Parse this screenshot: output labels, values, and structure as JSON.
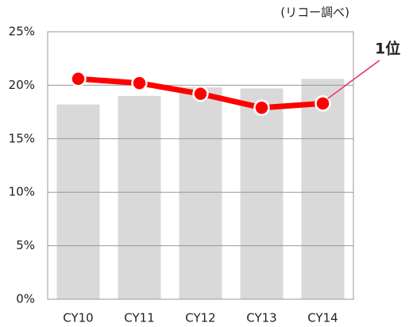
{
  "chart_data": {
    "type": "bar_line",
    "source": "(リコー調べ)",
    "annotation": "1位",
    "annotation_color": "#e6287a",
    "categories": [
      "CY10",
      "CY11",
      "CY12",
      "CY13",
      "CY14"
    ],
    "series": [
      {
        "type": "bar",
        "color": "#d9d9d9",
        "values": [
          18.2,
          19.0,
          19.8,
          19.7,
          20.6
        ]
      },
      {
        "type": "line",
        "color": "#ff0000",
        "values": [
          20.6,
          20.2,
          19.2,
          17.9,
          18.3
        ]
      }
    ],
    "ylim": [
      0,
      25
    ],
    "yticks": [
      {
        "value": 0,
        "label": "0%"
      },
      {
        "value": 5,
        "label": "5%"
      },
      {
        "value": 10,
        "label": "10%"
      },
      {
        "value": 15,
        "label": "15%"
      },
      {
        "value": 20,
        "label": "20%"
      },
      {
        "value": 25,
        "label": "25%"
      }
    ],
    "grid": true
  }
}
